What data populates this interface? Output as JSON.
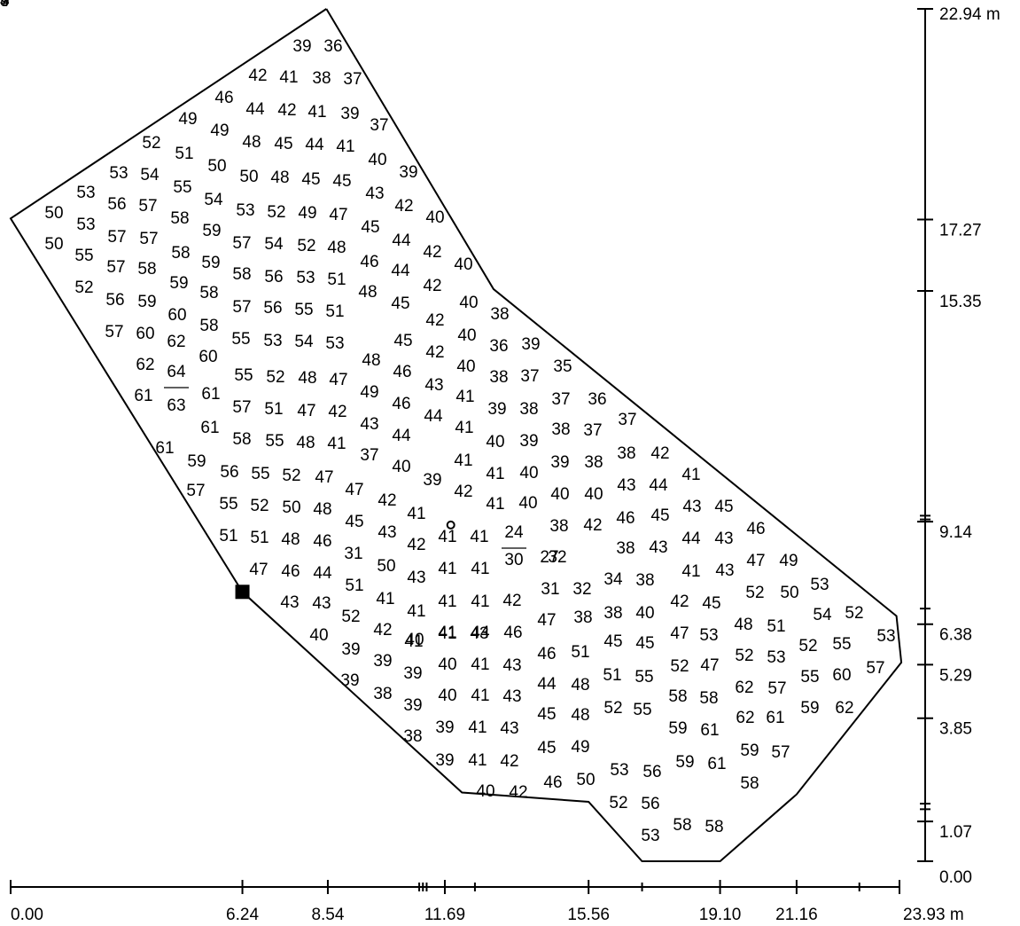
{
  "diagram": {
    "x_axis": {
      "ticks": [
        {
          "value": 0.0,
          "label": "0.00"
        },
        {
          "value": 6.24,
          "label": "6.24"
        },
        {
          "value": 8.54,
          "label": "8.54"
        },
        {
          "value": 11.69,
          "label": "11.69"
        },
        {
          "value": 15.56,
          "label": "15.56"
        },
        {
          "value": 19.1,
          "label": "19.10"
        },
        {
          "value": 21.16,
          "label": "21.16"
        },
        {
          "value": 23.93,
          "label": "23.93 m"
        }
      ],
      "minor_ticks": [
        11.0,
        11.1,
        11.2,
        12.5,
        17.0,
        22.85
      ]
    },
    "y_axis": {
      "ticks": [
        {
          "value": 0.0,
          "label": "0.00"
        },
        {
          "value": 1.07,
          "label": "1.07"
        },
        {
          "value": 3.85,
          "label": "3.85"
        },
        {
          "value": 5.29,
          "label": "5.29"
        },
        {
          "value": 6.38,
          "label": "6.38"
        },
        {
          "value": 9.14,
          "label": "9.14"
        },
        {
          "value": 15.35,
          "label": "15.35"
        },
        {
          "value": 17.27,
          "label": "17.27"
        },
        {
          "value": 22.94,
          "label": "22.94 m"
        }
      ],
      "minor_ticks": [
        1.4,
        1.55,
        6.8,
        9.2,
        9.3
      ]
    },
    "boundary": [
      [
        8.5,
        22.94
      ],
      [
        0.0,
        17.3
      ],
      [
        6.24,
        7.25
      ],
      [
        12.15,
        1.85
      ],
      [
        15.56,
        1.6
      ],
      [
        17.0,
        0.0
      ],
      [
        19.1,
        0.0
      ],
      [
        21.16,
        1.8
      ],
      [
        23.98,
        5.35
      ],
      [
        23.85,
        6.6
      ],
      [
        13.0,
        15.4
      ],
      [
        8.5,
        22.94
      ]
    ],
    "marker_square": [
      6.24,
      7.25
    ],
    "marker_circle": [
      11.85,
      9.05
    ],
    "fraction_labels": [
      {
        "num": "64",
        "den": "63"
      },
      {
        "num": "24",
        "den": "30"
      }
    ],
    "value_rows": [
      [
        "39",
        "36"
      ],
      [
        "42",
        "41",
        "38",
        "37"
      ],
      [
        "46",
        "44",
        "42",
        "41",
        "39"
      ],
      [
        "49",
        "37"
      ],
      [
        "49",
        "48",
        "45",
        "44",
        "41"
      ],
      [
        "52",
        "51",
        "40"
      ],
      [
        "50",
        "39"
      ],
      [
        "53",
        "54",
        "50",
        "48",
        "45",
        "45"
      ],
      [
        "55",
        "43"
      ],
      [
        "53",
        "56",
        "57",
        "54"
      ],
      [
        "50",
        "58",
        "53",
        "52",
        "49",
        "47",
        "42"
      ],
      [
        "53",
        "57",
        "45",
        "40"
      ],
      [
        "57",
        "59",
        "57",
        "54",
        "52",
        "48",
        "44"
      ],
      [
        "50",
        "55",
        "58",
        "42"
      ],
      [
        "57",
        "58",
        "59",
        "46",
        "40"
      ],
      [
        "59",
        "58",
        "56",
        "53",
        "51",
        "44"
      ],
      [
        "52",
        "58",
        "42"
      ],
      [
        "56",
        "59",
        "57",
        "56",
        "55",
        "51",
        "48",
        "40",
        "38"
      ],
      [
        "60",
        "45"
      ],
      [
        "57",
        "60",
        "58",
        "42"
      ],
      [
        "55",
        "53",
        "54",
        "53",
        "40",
        "36"
      ],
      [
        "62",
        "45",
        "39"
      ],
      [
        "60",
        "48",
        "42"
      ],
      [
        "62",
        "40",
        "38",
        "37",
        "35"
      ],
      [
        "55",
        "52",
        "48",
        "47",
        "46"
      ],
      [
        "61",
        "61",
        "49",
        "43",
        "41",
        "37"
      ],
      [
        "57",
        "51",
        "47",
        "42",
        "46",
        "36"
      ],
      [
        "44",
        "39",
        "38",
        "37"
      ],
      [
        "61",
        "43",
        "41",
        "38",
        "37"
      ],
      [
        "58",
        "55",
        "48",
        "41",
        "40",
        "39"
      ],
      [
        "61",
        "44"
      ],
      [
        "37",
        "41",
        "39",
        "38"
      ],
      [
        "59",
        "38",
        "42"
      ],
      [
        "56",
        "55",
        "52",
        "47",
        "40",
        "41",
        "40",
        "41"
      ],
      [
        "39"
      ],
      [
        "57",
        "47",
        "42",
        "42",
        "41",
        "40",
        "40",
        "40"
      ],
      [
        "55",
        "52",
        "50",
        "48",
        "43",
        "44"
      ],
      [
        "41",
        "45",
        "43",
        "41",
        "38",
        "42",
        "46"
      ],
      [
        "45",
        "43",
        "45",
        "46"
      ],
      [
        "51",
        "51",
        "48",
        "46",
        "42",
        "41",
        "32",
        "38",
        "43"
      ],
      [
        "44",
        "43",
        "31",
        "50",
        "49"
      ],
      [
        "27",
        "47",
        "49"
      ],
      [
        "47",
        "46",
        "44",
        "43",
        "41",
        "41",
        "41"
      ],
      [
        "34",
        "38"
      ],
      [
        "43",
        "51",
        "52"
      ],
      [
        "31",
        "32",
        "50"
      ],
      [
        "43",
        "43",
        "41",
        "41",
        "41",
        "41",
        "42"
      ],
      [
        "42",
        "45"
      ],
      [
        "53",
        "52"
      ],
      [
        "42",
        "38",
        "38",
        "40",
        "52"
      ],
      [
        "41",
        "44",
        "47",
        "48",
        "51"
      ],
      [
        "40",
        "41",
        "41",
        "43",
        "46",
        "47",
        "53",
        "54"
      ],
      [
        "40",
        "45",
        "45",
        "52",
        "53"
      ],
      [
        "39",
        "46"
      ],
      [
        "39",
        "51",
        "52",
        "55",
        "54"
      ],
      [
        "40",
        "41",
        "43",
        "47"
      ],
      [
        "39",
        "39",
        "52",
        "53",
        "55",
        "57"
      ],
      [
        "38",
        "44",
        "48",
        "58",
        "58",
        "57",
        "55"
      ],
      [
        "40",
        "41",
        "43"
      ],
      [
        "39",
        "51",
        "55",
        "62",
        "60"
      ],
      [
        "45",
        "48",
        "59",
        "61"
      ],
      [
        "38",
        "39",
        "41",
        "43",
        "52",
        "55"
      ],
      [
        "57"
      ],
      [
        "45",
        "49",
        "62",
        "61"
      ],
      [
        "39",
        "41",
        "42",
        "59",
        "62"
      ],
      [
        "46",
        "50",
        "53",
        "56"
      ],
      [
        "59",
        "57"
      ],
      [
        "40",
        "42",
        "59",
        "61"
      ],
      [
        "52",
        "56",
        "58"
      ],
      [
        "58",
        "58"
      ],
      [
        "53"
      ]
    ]
  }
}
